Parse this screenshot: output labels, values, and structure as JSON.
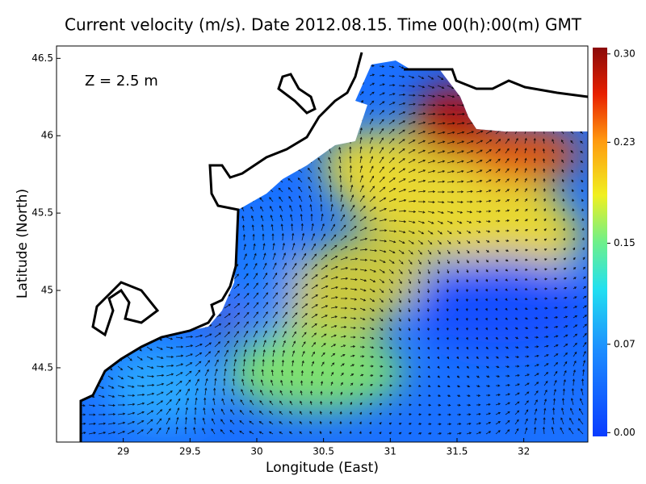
{
  "title": "Current velocity (m/s). Date 2012.08.15. Time 00(h):00(m) GMT",
  "annotation": "Z = 2.5 m",
  "x_axis": {
    "label": "Longitude (East)",
    "lim": [
      28.5,
      32.48
    ],
    "ticks": [
      29,
      29.5,
      30,
      30.5,
      31,
      31.5,
      32
    ]
  },
  "y_axis": {
    "label": "Latitude (North)",
    "lim": [
      44.02,
      46.58
    ],
    "ticks": [
      46.5,
      46,
      45.5,
      45,
      44.5
    ]
  },
  "colorbar": {
    "lim": [
      -0.003,
      0.305
    ],
    "ticks": [
      {
        "value": 0.3,
        "label": "0.30"
      },
      0.23,
      0.15,
      0.07,
      {
        "value": 0,
        "label": "0.00"
      }
    ]
  }
}
